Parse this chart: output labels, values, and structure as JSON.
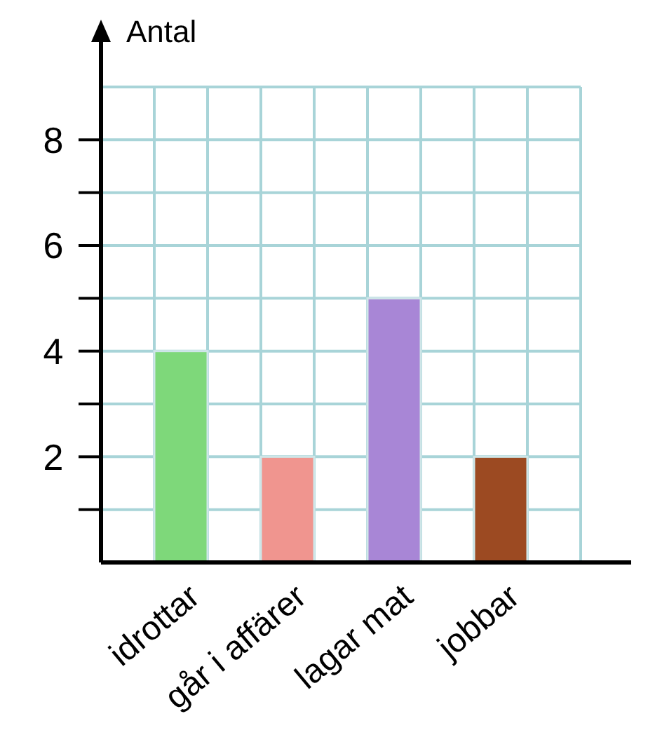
{
  "chart_data": {
    "type": "bar",
    "ylabel": "Antal",
    "categories": [
      "idrottar",
      "går i affärer",
      "lagar mat",
      "jobbar"
    ],
    "values": [
      4,
      2,
      5,
      2
    ],
    "colors": [
      "#7ed87a",
      "#f0958f",
      "#a886d6",
      "#9c4a22"
    ],
    "ylim": [
      0,
      9
    ],
    "yticks": [
      {
        "value": 1,
        "label": null
      },
      2,
      {
        "value": 3,
        "label": null
      },
      4,
      {
        "value": 5,
        "label": null
      },
      6,
      {
        "value": 7,
        "label": null
      },
      8
    ],
    "grid": true
  }
}
